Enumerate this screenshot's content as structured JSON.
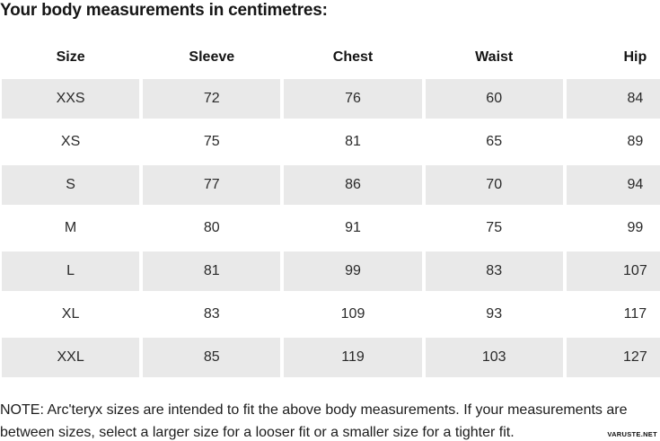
{
  "title": "Your body measurements in centimetres:",
  "table": {
    "columns": [
      "Size",
      "Sleeve",
      "Chest",
      "Waist",
      "Hip"
    ],
    "rows": [
      [
        "XXS",
        "72",
        "76",
        "60",
        "84"
      ],
      [
        "XS",
        "75",
        "81",
        "65",
        "89"
      ],
      [
        "S",
        "77",
        "86",
        "70",
        "94"
      ],
      [
        "M",
        "80",
        "91",
        "75",
        "99"
      ],
      [
        "L",
        "81",
        "99",
        "83",
        "107"
      ],
      [
        "XL",
        "83",
        "109",
        "93",
        "117"
      ],
      [
        "XXL",
        "85",
        "119",
        "103",
        "127"
      ]
    ]
  },
  "note": "NOTE: Arc'teryx sizes are intended to fit the above body measurements. If your measurements are between sizes, select a larger size for a looser fit or a smaller size for a tighter fit.",
  "watermark": "VARUSTE.NET",
  "colors": {
    "row_alt": "#e9e9e9",
    "text": "#1c1c1c",
    "background": "#ffffff"
  }
}
